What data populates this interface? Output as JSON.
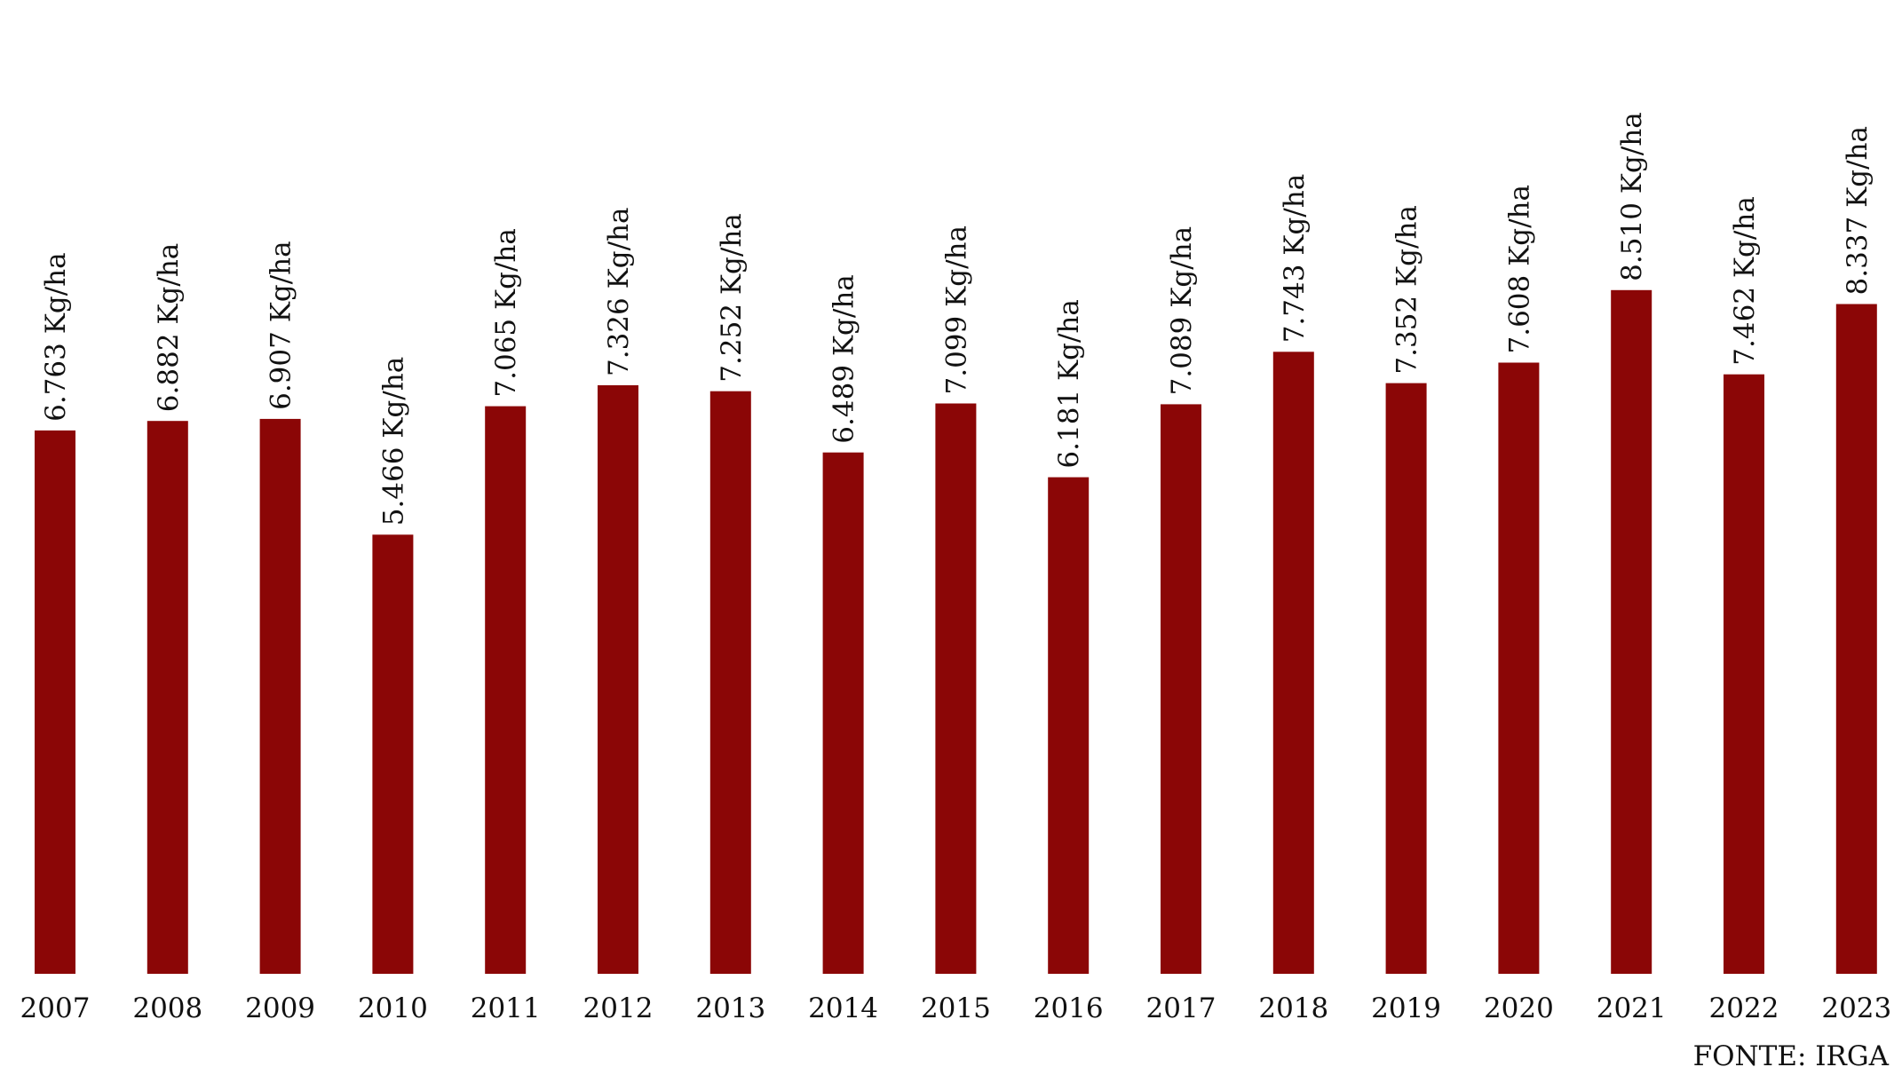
{
  "chart_data": {
    "type": "bar",
    "categories": [
      "2007",
      "2008",
      "2009",
      "2010",
      "2011",
      "2012",
      "2013",
      "2014",
      "2015",
      "2016",
      "2017",
      "2018",
      "2019",
      "2020",
      "2021",
      "2022",
      "2023"
    ],
    "values": [
      6763,
      6882,
      6907,
      5466,
      7065,
      7326,
      7252,
      6489,
      7099,
      6181,
      7089,
      7743,
      7352,
      7608,
      8510,
      7462,
      8337
    ],
    "value_labels": [
      "6.763 Kg/ha",
      "6.882 Kg/ha",
      "6.907 Kg/ha",
      "5.466 Kg/ha",
      "7.065 Kg/ha",
      "7.326 Kg/ha",
      "7.252 Kg/ha",
      "6.489 Kg/ha",
      "7.099 Kg/ha",
      "6.181 Kg/ha",
      "7.089 Kg/ha",
      "7.743 Kg/ha",
      "7.352 Kg/ha",
      "7.608 Kg/ha",
      "8.510 Kg/ha",
      "7.462 Kg/ha",
      "8.337 Kg/ha"
    ],
    "ylim": [
      0,
      9400
    ],
    "grid": false,
    "legend": "none",
    "bar_color": "#8b0606",
    "source": "FONTE: IRGA"
  }
}
